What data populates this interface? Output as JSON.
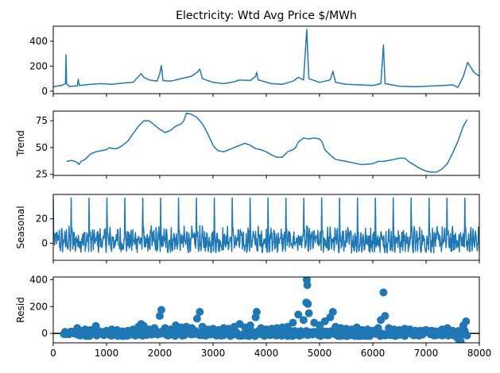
{
  "chart_data": {
    "type": "line",
    "title": "Electricity: Wtd Avg Price $/MWh",
    "xlim": [
      0,
      8000
    ],
    "x_ticks": [
      "0",
      "1000",
      "2000",
      "3000",
      "4000",
      "5000",
      "6000",
      "7000",
      "8000"
    ],
    "series_color": "#1f77b4",
    "panels": [
      {
        "name": "observed",
        "ylabel": "",
        "ylim": [
          -20,
          520
        ],
        "y_ticks": [
          0,
          200,
          400
        ],
        "type": "line",
        "points": [
          [
            0,
            35
          ],
          [
            150,
            45
          ],
          [
            230,
            60
          ],
          [
            240,
            290
          ],
          [
            250,
            60
          ],
          [
            300,
            38
          ],
          [
            450,
            42
          ],
          [
            470,
            95
          ],
          [
            490,
            45
          ],
          [
            700,
            55
          ],
          [
            900,
            60
          ],
          [
            1100,
            55
          ],
          [
            1300,
            65
          ],
          [
            1500,
            70
          ],
          [
            1650,
            140
          ],
          [
            1700,
            110
          ],
          [
            1800,
            90
          ],
          [
            1950,
            80
          ],
          [
            2000,
            140
          ],
          [
            2030,
            205
          ],
          [
            2060,
            85
          ],
          [
            2200,
            80
          ],
          [
            2400,
            100
          ],
          [
            2600,
            120
          ],
          [
            2700,
            150
          ],
          [
            2750,
            175
          ],
          [
            2800,
            100
          ],
          [
            3000,
            70
          ],
          [
            3200,
            60
          ],
          [
            3400,
            75
          ],
          [
            3500,
            90
          ],
          [
            3700,
            85
          ],
          [
            3800,
            120
          ],
          [
            3820,
            150
          ],
          [
            3850,
            90
          ],
          [
            4100,
            60
          ],
          [
            4300,
            55
          ],
          [
            4500,
            80
          ],
          [
            4600,
            110
          ],
          [
            4700,
            90
          ],
          [
            4760,
            495
          ],
          [
            4780,
            280
          ],
          [
            4800,
            100
          ],
          [
            5000,
            70
          ],
          [
            5200,
            90
          ],
          [
            5250,
            160
          ],
          [
            5300,
            70
          ],
          [
            5500,
            55
          ],
          [
            5800,
            50
          ],
          [
            6000,
            45
          ],
          [
            6150,
            60
          ],
          [
            6200,
            370
          ],
          [
            6230,
            60
          ],
          [
            6500,
            40
          ],
          [
            6800,
            35
          ],
          [
            7000,
            40
          ],
          [
            7300,
            45
          ],
          [
            7500,
            50
          ],
          [
            7600,
            30
          ],
          [
            7700,
            120
          ],
          [
            7780,
            230
          ],
          [
            7900,
            150
          ],
          [
            8000,
            120
          ]
        ],
        "baseline": null
      },
      {
        "name": "trend",
        "ylabel": "Trend",
        "ylim": [
          24,
          84
        ],
        "y_ticks": [
          25,
          50,
          75
        ],
        "type": "line",
        "points": [
          [
            250,
            37
          ],
          [
            350,
            38
          ],
          [
            400,
            37
          ],
          [
            450,
            36
          ],
          [
            480,
            34
          ],
          [
            520,
            37
          ],
          [
            600,
            39
          ],
          [
            700,
            44
          ],
          [
            800,
            46
          ],
          [
            900,
            47
          ],
          [
            1000,
            48
          ],
          [
            1050,
            50
          ],
          [
            1100,
            49
          ],
          [
            1200,
            49
          ],
          [
            1300,
            52
          ],
          [
            1400,
            56
          ],
          [
            1500,
            63
          ],
          [
            1600,
            70
          ],
          [
            1700,
            75
          ],
          [
            1800,
            75
          ],
          [
            1850,
            73
          ],
          [
            1900,
            71
          ],
          [
            1950,
            69
          ],
          [
            2000,
            67
          ],
          [
            2100,
            64
          ],
          [
            2200,
            66
          ],
          [
            2300,
            70
          ],
          [
            2400,
            72
          ],
          [
            2450,
            75
          ],
          [
            2500,
            82
          ],
          [
            2600,
            81
          ],
          [
            2700,
            78
          ],
          [
            2800,
            72
          ],
          [
            2900,
            63
          ],
          [
            3000,
            52
          ],
          [
            3050,
            49
          ],
          [
            3100,
            47
          ],
          [
            3200,
            46
          ],
          [
            3300,
            48
          ],
          [
            3400,
            50
          ],
          [
            3500,
            52
          ],
          [
            3600,
            54
          ],
          [
            3700,
            52
          ],
          [
            3800,
            49
          ],
          [
            3900,
            48
          ],
          [
            4000,
            46
          ],
          [
            4100,
            43
          ],
          [
            4200,
            41
          ],
          [
            4300,
            41
          ],
          [
            4400,
            46
          ],
          [
            4500,
            48
          ],
          [
            4550,
            50
          ],
          [
            4600,
            55
          ],
          [
            4700,
            59
          ],
          [
            4800,
            58
          ],
          [
            4900,
            59
          ],
          [
            5000,
            58
          ],
          [
            5050,
            55
          ],
          [
            5100,
            48
          ],
          [
            5200,
            43
          ],
          [
            5300,
            39
          ],
          [
            5400,
            38
          ],
          [
            5500,
            37
          ],
          [
            5600,
            36
          ],
          [
            5700,
            35
          ],
          [
            5800,
            34
          ],
          [
            6000,
            35
          ],
          [
            6100,
            37
          ],
          [
            6200,
            37
          ],
          [
            6300,
            38
          ],
          [
            6400,
            39
          ],
          [
            6500,
            40
          ],
          [
            6600,
            40
          ],
          [
            6650,
            38
          ],
          [
            6700,
            36
          ],
          [
            6800,
            33
          ],
          [
            6900,
            30
          ],
          [
            7000,
            28
          ],
          [
            7100,
            27
          ],
          [
            7200,
            27
          ],
          [
            7300,
            30
          ],
          [
            7400,
            35
          ],
          [
            7500,
            45
          ],
          [
            7600,
            56
          ],
          [
            7700,
            70
          ],
          [
            7770,
            76
          ]
        ],
        "baseline": null
      },
      {
        "name": "seasonal",
        "ylabel": "Seasonal",
        "ylim": [
          -14,
          40
        ],
        "y_ticks": [
          0,
          20
        ],
        "type": "seasonal",
        "period": 336,
        "spike": 37,
        "low": -8,
        "mid": 2,
        "baseline": null
      },
      {
        "name": "resid",
        "ylabel": "Resid",
        "ylim": [
          -70,
          420
        ],
        "y_ticks": [
          0,
          200,
          400
        ],
        "type": "scatter",
        "points": [
          [
            230,
            -5
          ],
          [
            400,
            10
          ],
          [
            450,
            40
          ],
          [
            520,
            20
          ],
          [
            600,
            30
          ],
          [
            700,
            25
          ],
          [
            800,
            55
          ],
          [
            900,
            10
          ],
          [
            1000,
            20
          ],
          [
            1100,
            30
          ],
          [
            1200,
            25
          ],
          [
            1300,
            15
          ],
          [
            1400,
            20
          ],
          [
            1500,
            30
          ],
          [
            1600,
            50
          ],
          [
            1650,
            70
          ],
          [
            1700,
            55
          ],
          [
            1800,
            30
          ],
          [
            1900,
            40
          ],
          [
            2000,
            130
          ],
          [
            2030,
            175
          ],
          [
            2100,
            40
          ],
          [
            2200,
            30
          ],
          [
            2300,
            60
          ],
          [
            2400,
            45
          ],
          [
            2500,
            50
          ],
          [
            2600,
            40
          ],
          [
            2700,
            110
          ],
          [
            2750,
            160
          ],
          [
            2800,
            50
          ],
          [
            2900,
            30
          ],
          [
            3000,
            35
          ],
          [
            3100,
            25
          ],
          [
            3200,
            40
          ],
          [
            3300,
            35
          ],
          [
            3400,
            50
          ],
          [
            3500,
            70
          ],
          [
            3600,
            45
          ],
          [
            3700,
            60
          ],
          [
            3800,
            120
          ],
          [
            3820,
            160
          ],
          [
            3900,
            40
          ],
          [
            4000,
            30
          ],
          [
            4100,
            35
          ],
          [
            4200,
            40
          ],
          [
            4300,
            45
          ],
          [
            4400,
            50
          ],
          [
            4500,
            80
          ],
          [
            4600,
            140
          ],
          [
            4700,
            100
          ],
          [
            4750,
            230
          ],
          [
            4760,
            400
          ],
          [
            4770,
            360
          ],
          [
            4780,
            220
          ],
          [
            4800,
            150
          ],
          [
            4900,
            80
          ],
          [
            5000,
            60
          ],
          [
            5100,
            90
          ],
          [
            5200,
            120
          ],
          [
            5250,
            160
          ],
          [
            5300,
            50
          ],
          [
            5400,
            40
          ],
          [
            5500,
            35
          ],
          [
            5600,
            30
          ],
          [
            5700,
            45
          ],
          [
            5800,
            25
          ],
          [
            5900,
            30
          ],
          [
            6000,
            20
          ],
          [
            6100,
            40
          ],
          [
            6150,
            100
          ],
          [
            6200,
            305
          ],
          [
            6230,
            130
          ],
          [
            6300,
            40
          ],
          [
            6400,
            30
          ],
          [
            6500,
            25
          ],
          [
            6600,
            35
          ],
          [
            6700,
            30
          ],
          [
            6800,
            20
          ],
          [
            6900,
            15
          ],
          [
            7000,
            25
          ],
          [
            7100,
            20
          ],
          [
            7200,
            15
          ],
          [
            7300,
            30
          ],
          [
            7400,
            40
          ],
          [
            7500,
            20
          ],
          [
            7600,
            -40
          ],
          [
            7650,
            -60
          ],
          [
            7700,
            60
          ],
          [
            7750,
            90
          ]
        ],
        "baseline": 0
      }
    ]
  }
}
